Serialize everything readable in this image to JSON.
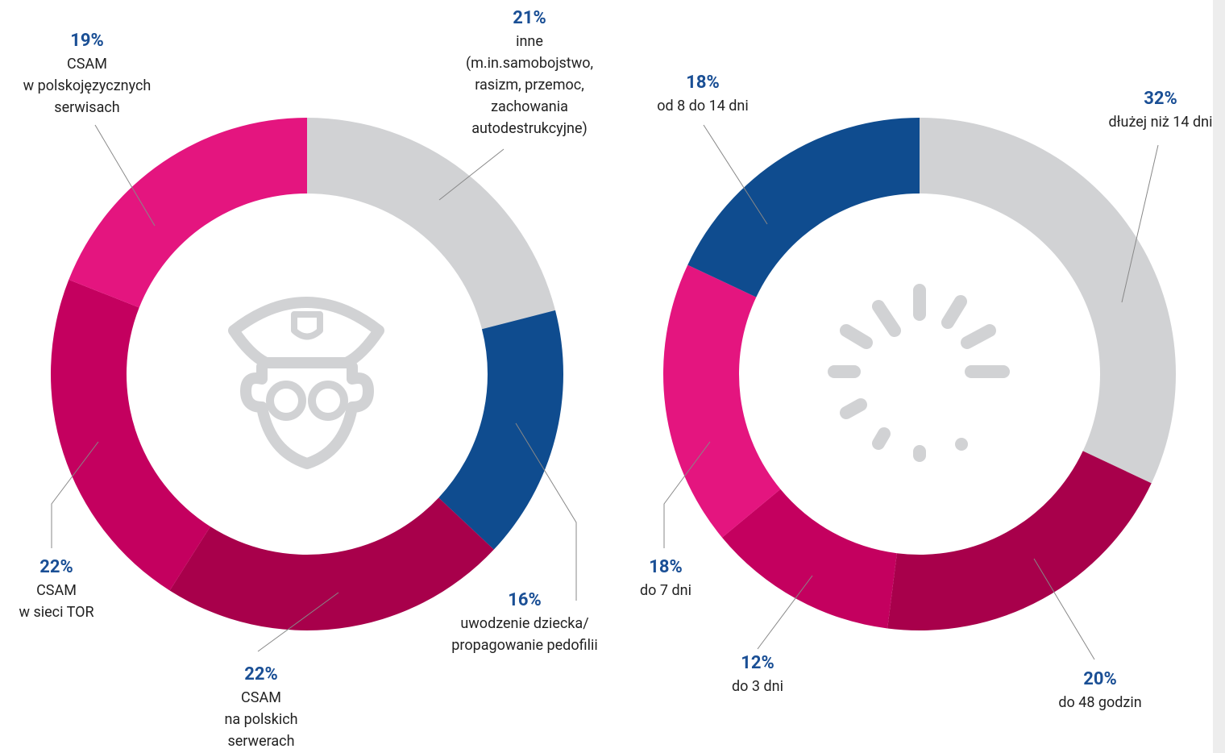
{
  "chart_data": [
    {
      "type": "pie",
      "donut": true,
      "categories": [
        "inne\n(m.in.samobojstwo,\nrasizm, przemoc,\nzachowania\nautodestrukcyjne)",
        "uwodzenie dziecka/\npropagowanie pedofilii",
        "CSAM\nna polskich\nserwerach",
        "CSAM\nw sieci TOR",
        "CSAM\nw polskojęzycznych\nserwisach"
      ],
      "values": [
        21,
        16,
        22,
        22,
        19
      ],
      "value_labels": [
        "21%",
        "16%",
        "22%",
        "22%",
        "19%"
      ],
      "colors": [
        "#d1d2d4",
        "#0f4c8f",
        "#a8004b",
        "#c4005f",
        "#e4157f"
      ]
    },
    {
      "type": "pie",
      "donut": true,
      "categories": [
        "dłużej niż 14 dni",
        "do 48 godzin",
        "do 3 dni",
        "do 7 dni",
        "od 8 do 14 dni"
      ],
      "values": [
        32,
        20,
        12,
        18,
        18
      ],
      "value_labels": [
        "32%",
        "20%",
        "12%",
        "18%",
        "18%"
      ],
      "colors": [
        "#d1d2d4",
        "#a8004b",
        "#c4005f",
        "#e4157f",
        "#0f4c8f"
      ]
    }
  ]
}
